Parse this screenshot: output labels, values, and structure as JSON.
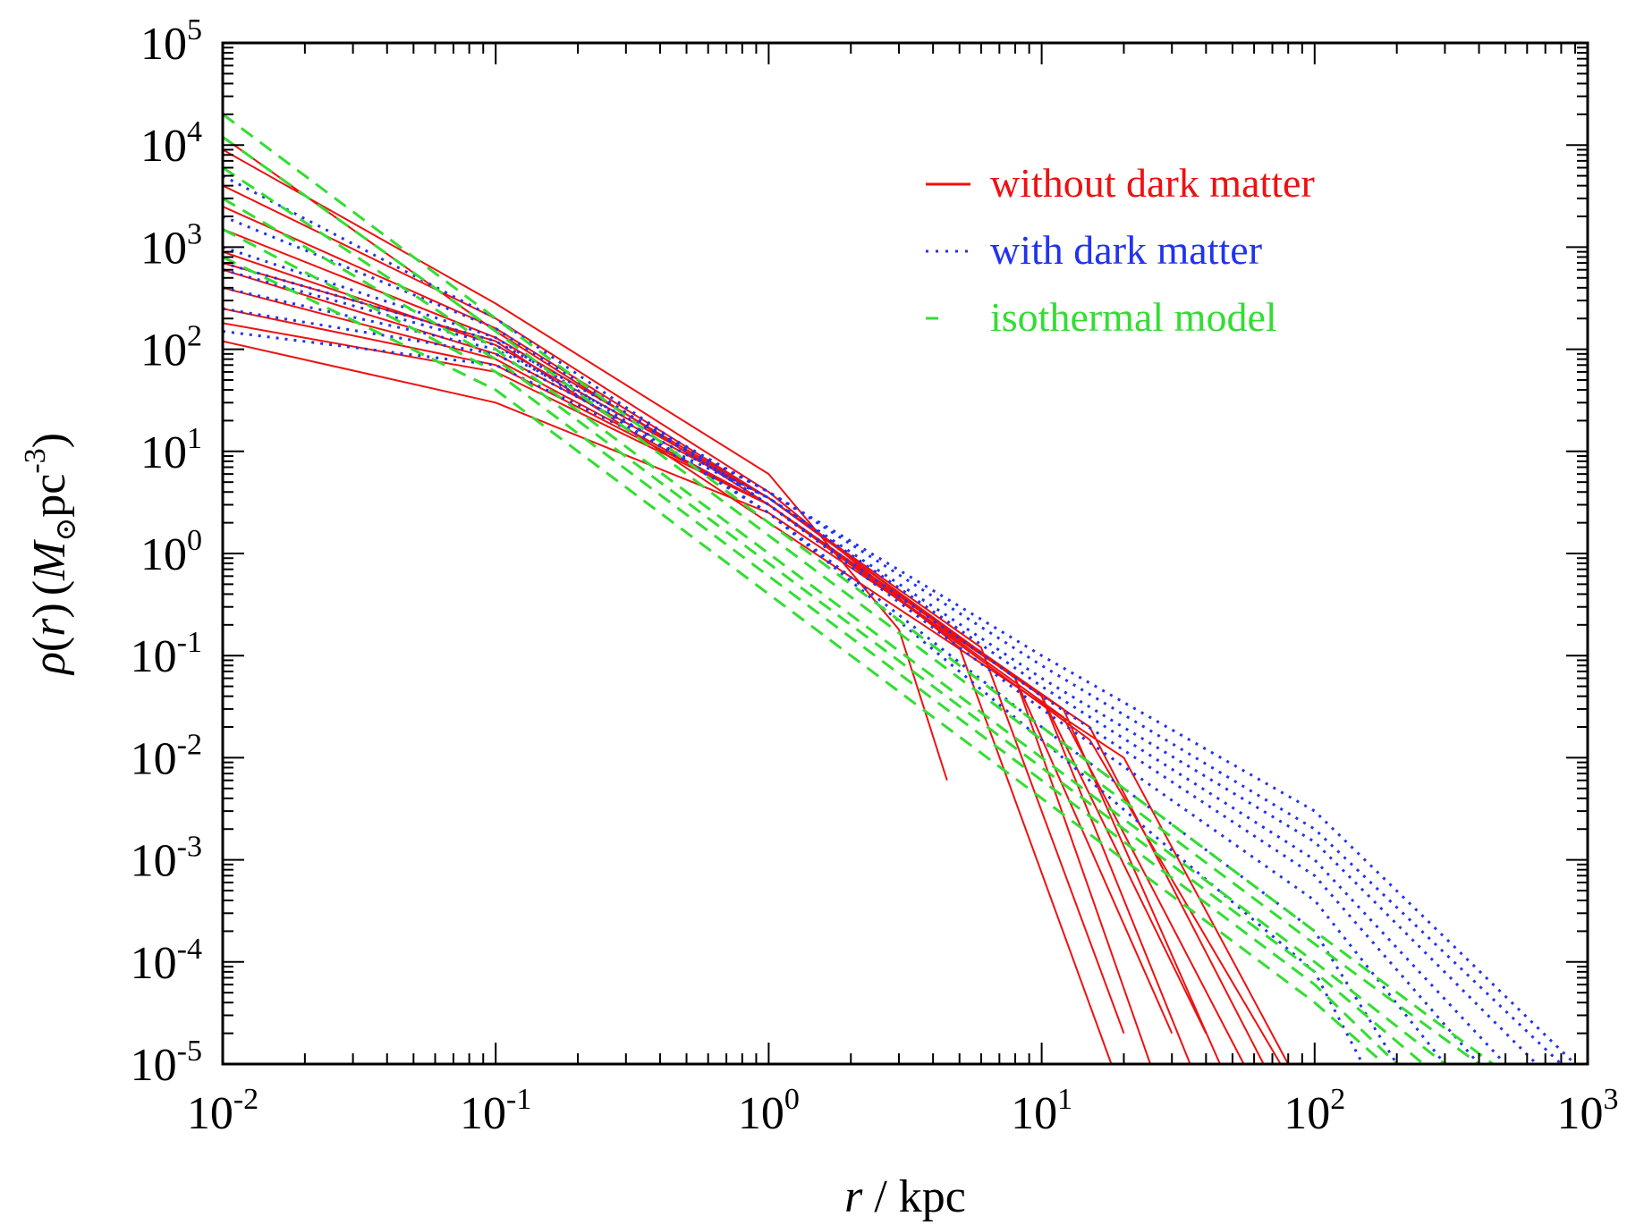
{
  "chart_data": {
    "type": "line",
    "x_scale": "log",
    "y_scale": "log",
    "xlim": [
      0.01,
      1000
    ],
    "ylim": [
      1e-05,
      100000
    ],
    "x_ticks": [
      {
        "value": 0.01,
        "base": "10",
        "exp": "-2"
      },
      {
        "value": 0.1,
        "base": "10",
        "exp": "-1"
      },
      {
        "value": 1,
        "base": "10",
        "exp": "0"
      },
      {
        "value": 10,
        "base": "10",
        "exp": "1"
      },
      {
        "value": 100,
        "base": "10",
        "exp": "2"
      },
      {
        "value": 1000,
        "base": "10",
        "exp": "3"
      }
    ],
    "y_ticks": [
      {
        "value": 1e-05,
        "base": "10",
        "exp": "-5"
      },
      {
        "value": 0.0001,
        "base": "10",
        "exp": "-4"
      },
      {
        "value": 0.001,
        "base": "10",
        "exp": "-3"
      },
      {
        "value": 0.01,
        "base": "10",
        "exp": "-2"
      },
      {
        "value": 0.1,
        "base": "10",
        "exp": "-1"
      },
      {
        "value": 1,
        "base": "10",
        "exp": "0"
      },
      {
        "value": 10,
        "base": "10",
        "exp": "1"
      },
      {
        "value": 100,
        "base": "10",
        "exp": "2"
      },
      {
        "value": 1000,
        "base": "10",
        "exp": "3"
      },
      {
        "value": 10000,
        "base": "10",
        "exp": "4"
      },
      {
        "value": 100000,
        "base": "10",
        "exp": "5"
      }
    ],
    "xlabel": {
      "var": "r",
      "sep": " / ",
      "unit": "kpc"
    },
    "ylabel": {
      "rho": "ρ",
      "open": "(",
      "var": "r",
      "close": ")",
      "unit_open": "(",
      "msun": "M",
      "sun": "⊙",
      "pc": "pc",
      "exp": "-3",
      "unit_close": ")"
    },
    "legend_position": "top-right",
    "grid": false,
    "series_groups": [
      {
        "name": "without dark matter",
        "color": "#ee1111",
        "style": "solid",
        "curves": [
          {
            "x": [
              0.01,
              0.1,
              1,
              3,
              4.5
            ],
            "y": [
              9000,
              280,
              6,
              0.18,
              0.006
            ]
          },
          {
            "x": [
              0.01,
              0.1,
              1,
              5,
              18
            ],
            "y": [
              4000,
              200,
              4,
              0.12,
              1e-05
            ]
          },
          {
            "x": [
              0.01,
              0.1,
              1,
              6,
              20
            ],
            "y": [
              2500,
              160,
              3.5,
              0.12,
              2e-05
            ]
          },
          {
            "x": [
              0.01,
              0.1,
              1,
              8,
              25
            ],
            "y": [
              1500,
              130,
              3.5,
              0.06,
              1e-05
            ]
          },
          {
            "x": [
              0.01,
              0.1,
              1,
              8,
              30
            ],
            "y": [
              900,
              110,
              3.5,
              0.06,
              2e-05
            ]
          },
          {
            "x": [
              0.01,
              0.1,
              1,
              10,
              35
            ],
            "y": [
              600,
              90,
              3.5,
              0.04,
              1e-05
            ]
          },
          {
            "x": [
              0.01,
              0.1,
              1,
              10,
              40
            ],
            "y": [
              400,
              80,
              3,
              0.04,
              2e-05
            ]
          },
          {
            "x": [
              0.01,
              0.1,
              1,
              12,
              45
            ],
            "y": [
              250,
              70,
              3,
              0.03,
              1e-05
            ]
          },
          {
            "x": [
              0.01,
              0.1,
              1,
              12,
              55
            ],
            "y": [
              180,
              60,
              3,
              0.025,
              1e-05
            ]
          },
          {
            "x": [
              0.01,
              0.1,
              1,
              15,
              65
            ],
            "y": [
              120,
              30,
              2.5,
              0.02,
              1e-05
            ]
          },
          {
            "x": [
              0.01,
              0.1,
              1,
              15,
              75
            ],
            "y": [
              12000,
              150,
              3,
              0.015,
              1e-05
            ]
          },
          {
            "x": [
              0.01,
              0.1,
              1,
              20,
              80
            ],
            "y": [
              700,
              120,
              2,
              0.01,
              1e-05
            ]
          }
        ]
      },
      {
        "name": "with dark matter",
        "color": "#2233ee",
        "style": "dotted",
        "curves": [
          {
            "x": [
              0.01,
              0.1,
              1,
              10,
              100,
              900
            ],
            "y": [
              700,
              120,
              4,
              0.1,
              0.003,
              1e-05
            ]
          },
          {
            "x": [
              0.01,
              0.1,
              1,
              10,
              100,
              800
            ],
            "y": [
              400,
              100,
              4,
              0.08,
              0.002,
              1e-05
            ]
          },
          {
            "x": [
              0.01,
              0.1,
              1,
              10,
              100,
              650
            ],
            "y": [
              250,
              90,
              3.5,
              0.06,
              0.0015,
              1e-05
            ]
          },
          {
            "x": [
              0.01,
              0.1,
              1,
              10,
              100,
              500
            ],
            "y": [
              150,
              70,
              3.5,
              0.05,
              0.001,
              1e-05
            ]
          },
          {
            "x": [
              0.01,
              0.1,
              1,
              10,
              100,
              400
            ],
            "y": [
              5000,
              200,
              3,
              0.04,
              0.0007,
              1e-05
            ]
          },
          {
            "x": [
              0.01,
              0.1,
              1,
              10,
              100,
              300
            ],
            "y": [
              2000,
              160,
              3,
              0.03,
              0.0004,
              1e-05
            ]
          },
          {
            "x": [
              0.01,
              0.1,
              1,
              10,
              100,
              200
            ],
            "y": [
              1000,
              130,
              2.5,
              0.02,
              0.0002,
              1e-05
            ]
          },
          {
            "x": [
              0.01,
              0.1,
              1,
              10,
              100,
              150
            ],
            "y": [
              600,
              110,
              2.5,
              0.015,
              8e-05,
              1e-05
            ]
          }
        ]
      },
      {
        "name": "isothermal model",
        "color": "#33dd33",
        "style": "dashed",
        "curves": [
          {
            "x": [
              0.01,
              0.1,
              1,
              10,
              100,
              450
            ],
            "y": [
              20000,
              200,
              2,
              0.02,
              0.0002,
              1e-05
            ]
          },
          {
            "x": [
              0.01,
              0.1,
              1,
              10,
              100,
              400
            ],
            "y": [
              12000,
              150,
              1.5,
              0.015,
              0.00015,
              1e-05
            ]
          },
          {
            "x": [
              0.01,
              0.1,
              1,
              10,
              100,
              300
            ],
            "y": [
              6000,
              100,
              1,
              0.01,
              0.0001,
              1e-05
            ]
          },
          {
            "x": [
              0.01,
              0.1,
              1,
              10,
              100,
              250
            ],
            "y": [
              3000,
              80,
              0.8,
              0.008,
              8e-05,
              1e-05
            ]
          },
          {
            "x": [
              0.01,
              0.1,
              1,
              10,
              100,
              200
            ],
            "y": [
              1500,
              60,
              0.6,
              0.006,
              6e-05,
              1e-05
            ]
          },
          {
            "x": [
              0.01,
              0.1,
              1,
              10,
              100,
              180
            ],
            "y": [
              800,
              40,
              0.4,
              0.004,
              4e-05,
              1e-05
            ]
          }
        ]
      }
    ]
  }
}
